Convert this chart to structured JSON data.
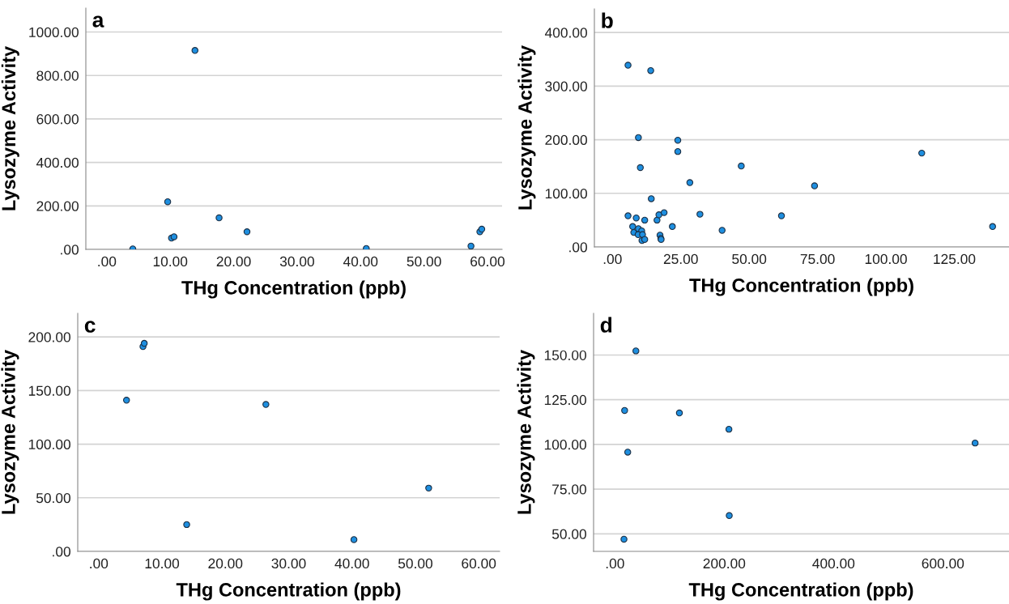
{
  "chart_data": [
    {
      "type": "scatter",
      "title": "a",
      "xlabel": "THg Concentration (ppb)",
      "ylabel": "Lysozyme Activity",
      "grid": "y",
      "marker": "circle",
      "xlim": [
        -3.3,
        62.3
      ],
      "xticks": [
        {
          "value": 0,
          "label": ".00"
        },
        {
          "value": 10,
          "label": "10.00"
        },
        {
          "value": 20,
          "label": "20.00"
        },
        {
          "value": 30,
          "label": "30.00"
        },
        {
          "value": 40,
          "label": "40.00"
        },
        {
          "value": 50,
          "label": "50.00"
        },
        {
          "value": 60,
          "label": "60.00"
        }
      ],
      "ylim": [
        0,
        1110
      ],
      "yticks": [
        {
          "value": 0,
          "label": ".00"
        },
        {
          "value": 200,
          "label": "200.00"
        },
        {
          "value": 400,
          "label": "400.00"
        },
        {
          "value": 600,
          "label": "600.00"
        },
        {
          "value": 800,
          "label": "800.00"
        },
        {
          "value": 1000,
          "label": "1000.00"
        }
      ],
      "series": [
        {
          "color": "#1e8fe0",
          "x": [
            4.1,
            9.6,
            10.2,
            10.6,
            13.9,
            17.7,
            22.1,
            40.9,
            57.4,
            58.8,
            59.1
          ],
          "values": [
            2,
            219,
            52,
            58,
            915,
            145,
            81,
            4,
            15,
            81,
            93
          ]
        }
      ]
    },
    {
      "type": "scatter",
      "title": "b",
      "xlabel": "THg Concentration (ppb)",
      "ylabel": "Lysozyme Activity",
      "grid": "y",
      "marker": "circle",
      "xlim": [
        -6.6,
        145
      ],
      "xticks": [
        {
          "value": 0,
          "label": ".00"
        },
        {
          "value": 25,
          "label": "25.00"
        },
        {
          "value": 50,
          "label": "50.00"
        },
        {
          "value": 75,
          "label": "75.00"
        },
        {
          "value": 100,
          "label": "100.00"
        },
        {
          "value": 125,
          "label": "125.00"
        }
      ],
      "ylim": [
        0,
        444
      ],
      "yticks": [
        {
          "value": 0,
          "label": ".00"
        },
        {
          "value": 100,
          "label": "100.00"
        },
        {
          "value": 200,
          "label": "200.00"
        },
        {
          "value": 300,
          "label": "300.00"
        },
        {
          "value": 400,
          "label": "400.00"
        }
      ],
      "series": [
        {
          "color": "#1e8fe0",
          "x": [
            5.7,
            14.0,
            9.5,
            23.9,
            23.9,
            10.2,
            47.1,
            28.3,
            113.1,
            73.9,
            14.2,
            5.7,
            8.7,
            11.8,
            16.3,
            17.0,
            18.9,
            32.0,
            61.8,
            139.0,
            21.9,
            40.1,
            7.4,
            7.8,
            9.5,
            10.7,
            9.4,
            11.0,
            10.8,
            11.8,
            17.4,
            17.7,
            17.8
          ],
          "values": [
            339,
            329,
            204,
            199,
            178,
            148,
            151,
            120,
            175,
            114,
            90,
            58,
            54,
            50,
            50,
            60,
            64,
            61,
            58,
            38,
            38,
            31,
            38,
            27,
            34,
            30,
            23,
            23,
            12,
            14,
            22,
            16,
            14
          ]
        }
      ]
    },
    {
      "type": "scatter",
      "title": "c",
      "xlabel": "THg Concentration (ppb)",
      "ylabel": "Lysozyme Activity",
      "grid": "y",
      "marker": "circle",
      "xlim": [
        -3.3,
        63.3
      ],
      "xticks": [
        {
          "value": 0,
          "label": ".00"
        },
        {
          "value": 10,
          "label": "10.00"
        },
        {
          "value": 20,
          "label": "20.00"
        },
        {
          "value": 30,
          "label": "30.00"
        },
        {
          "value": 40,
          "label": "40.00"
        },
        {
          "value": 50,
          "label": "50.00"
        },
        {
          "value": 60,
          "label": "60.00"
        }
      ],
      "ylim": [
        0,
        222
      ],
      "yticks": [
        {
          "value": 0,
          "label": ".00"
        },
        {
          "value": 50,
          "label": "50.00"
        },
        {
          "value": 100,
          "label": "100.00"
        },
        {
          "value": 150,
          "label": "150.00"
        },
        {
          "value": 200,
          "label": "200.00"
        }
      ],
      "series": [
        {
          "color": "#1e8fe0",
          "x": [
            4.4,
            7.0,
            7.2,
            13.9,
            26.4,
            40.3,
            52.1
          ],
          "values": [
            141,
            191,
            194,
            25,
            137,
            11,
            59
          ]
        }
      ]
    },
    {
      "type": "scatter",
      "title": "d",
      "xlabel": "THg Concentration (ppb)",
      "ylabel": "Lysozyme Activity",
      "grid": "y",
      "marker": "circle",
      "xlim": [
        -39,
        721
      ],
      "xticks": [
        {
          "value": 0,
          "label": ".00"
        },
        {
          "value": 200,
          "label": "200.00"
        },
        {
          "value": 400,
          "label": "400.00"
        },
        {
          "value": 600,
          "label": "600.00"
        }
      ],
      "ylim": [
        40.2,
        173.3
      ],
      "yticks": [
        {
          "value": 50,
          "label": "50.00"
        },
        {
          "value": 75,
          "label": "75.00"
        },
        {
          "value": 100,
          "label": "100.00"
        },
        {
          "value": 125,
          "label": "125.00"
        },
        {
          "value": 150,
          "label": "150.00"
        }
      ],
      "series": [
        {
          "color": "#1e8fe0",
          "x": [
            16.6,
            17.8,
            23.5,
            38.4,
            118,
            208.6,
            209.2,
            659
          ],
          "values": [
            47.0,
            119.0,
            95.7,
            152.3,
            117.6,
            108.5,
            60.2,
            100.8
          ]
        }
      ]
    }
  ]
}
